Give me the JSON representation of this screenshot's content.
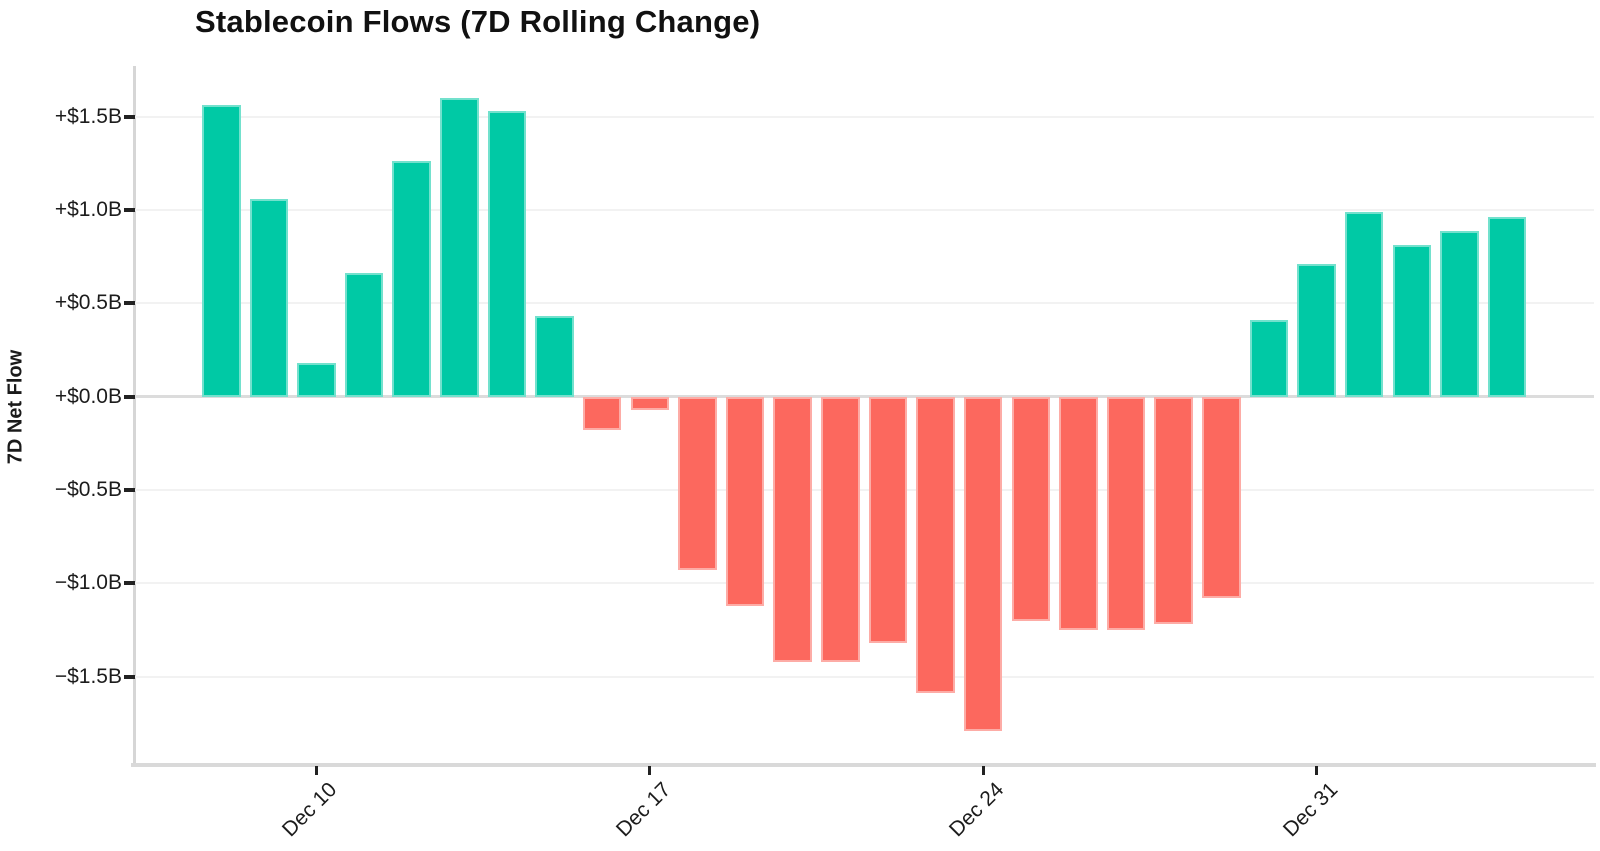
{
  "title": "Stablecoin Flows (7D Rolling Change)",
  "chart_data": {
    "type": "bar",
    "title": "Stablecoin Flows (7D Rolling Change)",
    "xlabel": "",
    "ylabel": "7D Net Flow",
    "unit": "billions of USD",
    "grid": true,
    "legend": false,
    "x": [
      "Dec 8",
      "Dec 9",
      "Dec 10",
      "Dec 11",
      "Dec 12",
      "Dec 13",
      "Dec 14",
      "Dec 15",
      "Dec 16",
      "Dec 17",
      "Dec 18",
      "Dec 19",
      "Dec 20",
      "Dec 21",
      "Dec 22",
      "Dec 23",
      "Dec 24",
      "Dec 25",
      "Dec 26",
      "Dec 27",
      "Dec 28",
      "Dec 29",
      "Dec 30",
      "Dec 31",
      "Jan 1",
      "Jan 2",
      "Jan 3",
      "Jan 4"
    ],
    "values": [
      1.56,
      1.06,
      0.18,
      0.66,
      1.26,
      1.6,
      1.53,
      0.43,
      -0.18,
      -0.07,
      -0.93,
      -1.12,
      -1.42,
      -1.42,
      -1.32,
      -1.59,
      -1.79,
      -1.2,
      -1.25,
      -1.25,
      -1.22,
      -1.08,
      0.41,
      0.71,
      0.99,
      0.81,
      0.89,
      0.96
    ],
    "x_tick_labels": [
      "Dec 10",
      "Dec 17",
      "Dec 24",
      "Dec 31"
    ],
    "x_tick_indices": [
      2,
      9,
      16,
      23
    ],
    "y_ticks": [
      {
        "label": "+$1.5B",
        "value": 1.5
      },
      {
        "label": "+$1.0B",
        "value": 1.0
      },
      {
        "label": "+$0.5B",
        "value": 0.5
      },
      {
        "label": "+$0.0B",
        "value": 0.0
      },
      {
        "label": "−$0.5B",
        "value": -0.5
      },
      {
        "label": "−$1.0B",
        "value": -1.0
      },
      {
        "label": "−$1.5B",
        "value": -1.5
      }
    ],
    "ylim": [
      -1.97,
      1.77
    ],
    "colors": {
      "positive": "#00C9A5",
      "negative": "#FC685E",
      "gridline": "#F2F2F2",
      "zero_line": "#DCDCDC",
      "axis": "#D9D9D9",
      "tick": "#222222",
      "text": "#1C1C1C"
    }
  }
}
